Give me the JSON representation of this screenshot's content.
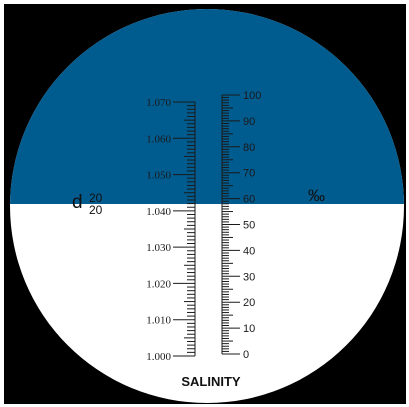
{
  "colors": {
    "reading_field": "#005b8f",
    "clear_field": "#ffffff",
    "eyepiece_border": "#000000",
    "scale_ink": "#1a1a1a"
  },
  "reading": {
    "specific_gravity": 1.04,
    "salinity_permille": 60
  },
  "specific_gravity_scale": {
    "symbol": "d",
    "superscript": "20",
    "subscript": "20",
    "labels": [
      "1.070",
      "1.060",
      "1.050",
      "1.040",
      "1.030",
      "1.020",
      "1.010",
      "1.000"
    ]
  },
  "salinity_scale": {
    "unit": "‰",
    "labels": [
      "100",
      "90",
      "80",
      "70",
      "60",
      "50",
      "40",
      "30",
      "20",
      "10",
      "0"
    ]
  },
  "footer": {
    "title": "SALINITY"
  }
}
